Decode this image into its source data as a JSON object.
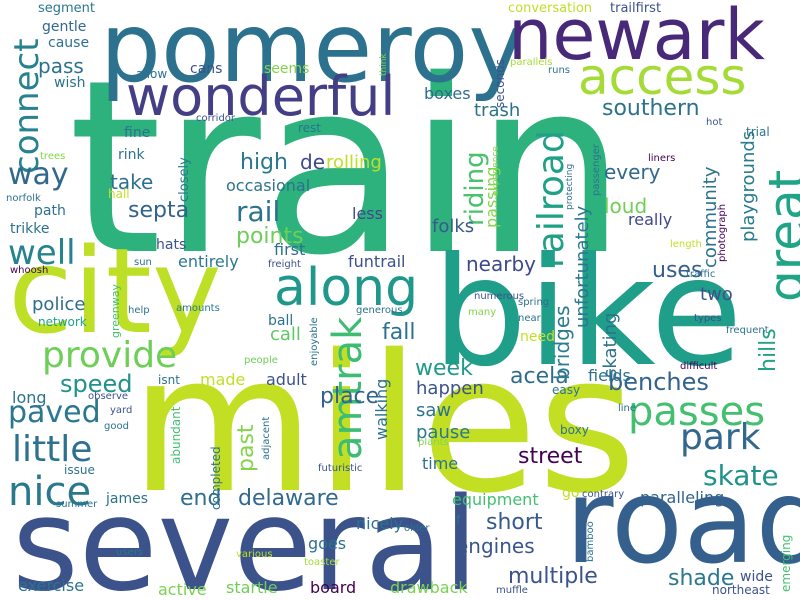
{
  "words": [
    {
      "text": "train",
      "color": "#2db27d"
    },
    {
      "text": "miles",
      "color": "#c2df23"
    },
    {
      "text": "several",
      "color": "#3b528b"
    },
    {
      "text": "bike",
      "color": "#1f9e89"
    },
    {
      "text": "city",
      "color": "#bddf26"
    },
    {
      "text": "road",
      "color": "#355f8d"
    },
    {
      "text": "pomeroy",
      "color": "#2c728e"
    },
    {
      "text": "newark",
      "color": "#482878"
    },
    {
      "text": "access",
      "color": "#a5db36"
    },
    {
      "text": "wonderful",
      "color": "#433e85"
    },
    {
      "text": "along",
      "color": "#1f988b"
    },
    {
      "text": "great",
      "color": "#20a486"
    },
    {
      "text": "provide",
      "color": "#6ece58"
    },
    {
      "text": "amtrak",
      "color": "#3dbc74"
    },
    {
      "text": "passes",
      "color": "#44bf70"
    },
    {
      "text": "connect",
      "color": "#26828e"
    },
    {
      "text": "railroad",
      "color": "#1fa187"
    },
    {
      "text": "park",
      "color": "#31688e"
    },
    {
      "text": "nice",
      "color": "#2a788e"
    },
    {
      "text": "little",
      "color": "#2c728e"
    },
    {
      "text": "well",
      "color": "#25838e"
    },
    {
      "text": "way",
      "color": "#31688e"
    },
    {
      "text": "paved",
      "color": "#2a788e"
    },
    {
      "text": "benches",
      "color": "#33638d"
    },
    {
      "text": "skate",
      "color": "#20928c"
    },
    {
      "text": "rail",
      "color": "#2c728e"
    },
    {
      "text": "southern",
      "color": "#2c728e"
    },
    {
      "text": "riding",
      "color": "#4ac16d"
    },
    {
      "text": "delaware",
      "color": "#31688e"
    },
    {
      "text": "street",
      "color": "#440154"
    },
    {
      "text": "multiple",
      "color": "#3b528b"
    },
    {
      "text": "engines",
      "color": "#39568c"
    },
    {
      "text": "short",
      "color": "#38598c"
    },
    {
      "text": "shade",
      "color": "#2a788e"
    },
    {
      "text": "fall",
      "color": "#2c728e"
    },
    {
      "text": "acela",
      "color": "#2f6c8e"
    },
    {
      "text": "speed",
      "color": "#21918c"
    },
    {
      "text": "high",
      "color": "#2a788e"
    },
    {
      "text": "take",
      "color": "#2d708e"
    },
    {
      "text": "septa",
      "color": "#33638d"
    },
    {
      "text": "points",
      "color": "#6ece58"
    },
    {
      "text": "nearby",
      "color": "#3e4989"
    },
    {
      "text": "place",
      "color": "#34618d"
    },
    {
      "text": "week",
      "color": "#1f9a8a"
    },
    {
      "text": "end",
      "color": "#2e6e8e"
    },
    {
      "text": "past",
      "color": "#84d44b"
    },
    {
      "text": "police",
      "color": "#2f6c8e"
    },
    {
      "text": "bridges",
      "color": "#287d8e"
    },
    {
      "text": "unfortunately",
      "color": "#29798e"
    },
    {
      "text": "skating",
      "color": "#2c728e"
    },
    {
      "text": "uses",
      "color": "#355e8d"
    },
    {
      "text": "two",
      "color": "#3b528b"
    },
    {
      "text": "every",
      "color": "#31688e"
    },
    {
      "text": "loud",
      "color": "#6ece58"
    },
    {
      "text": "really",
      "color": "#3f4788"
    },
    {
      "text": "community",
      "color": "#2c728e"
    },
    {
      "text": "playgrounds",
      "color": "#287c8e"
    },
    {
      "text": "hills",
      "color": "#20a386"
    },
    {
      "text": "funtrail",
      "color": "#3b528b"
    },
    {
      "text": "first",
      "color": "#2e6e8e"
    },
    {
      "text": "folks",
      "color": "#38598c"
    },
    {
      "text": "passing",
      "color": "#84d44b"
    },
    {
      "text": "trash",
      "color": "#2c728e"
    },
    {
      "text": "boxes",
      "color": "#2f6c8e"
    },
    {
      "text": "de",
      "color": "#3e4989"
    },
    {
      "text": "rolling",
      "color": "#bddf26"
    },
    {
      "text": "less",
      "color": "#3e4989"
    },
    {
      "text": "occasional",
      "color": "#2c728e"
    },
    {
      "text": "entirely",
      "color": "#2a788e"
    },
    {
      "text": "call",
      "color": "#5ec962"
    },
    {
      "text": "ball",
      "color": "#2c728e"
    },
    {
      "text": "adult",
      "color": "#3b528b"
    },
    {
      "text": "made",
      "color": "#c2df23"
    },
    {
      "text": "walking",
      "color": "#2c728e"
    },
    {
      "text": "happen",
      "color": "#3b528b"
    },
    {
      "text": "saw",
      "color": "#2c728e"
    },
    {
      "text": "pause",
      "color": "#2a788e"
    },
    {
      "text": "time",
      "color": "#2c728e"
    },
    {
      "text": "fields",
      "color": "#2c728e"
    },
    {
      "text": "equipment",
      "color": "#44bf70"
    },
    {
      "text": "paralleling",
      "color": "#33638d"
    },
    {
      "text": "nicely",
      "color": "#2c728e"
    },
    {
      "text": "goes",
      "color": "#2c728e"
    },
    {
      "text": "board",
      "color": "#440154"
    },
    {
      "text": "drawback",
      "color": "#7ad151"
    },
    {
      "text": "startle",
      "color": "#6ece58"
    },
    {
      "text": "active",
      "color": "#7ad151"
    },
    {
      "text": "exercise",
      "color": "#2c728e"
    },
    {
      "text": "james",
      "color": "#2c728e"
    },
    {
      "text": "long",
      "color": "#2c728e"
    },
    {
      "text": "pass",
      "color": "#2c728e"
    },
    {
      "text": "cause",
      "color": "#2c728e"
    },
    {
      "text": "gentle",
      "color": "#31688e"
    },
    {
      "text": "segment",
      "color": "#2a788e"
    },
    {
      "text": "wish",
      "color": "#2c728e"
    },
    {
      "text": "cans",
      "color": "#3b528b"
    },
    {
      "text": "seems",
      "color": "#84d44b"
    },
    {
      "text": "allow",
      "color": "#2c728e"
    },
    {
      "text": "fine",
      "color": "#2c728e"
    },
    {
      "text": "rink",
      "color": "#2c728e"
    },
    {
      "text": "closely",
      "color": "#2a788e"
    },
    {
      "text": "hall",
      "color": "#c2df23"
    },
    {
      "text": "hats",
      "color": "#3b528b"
    },
    {
      "text": "path",
      "color": "#2c728e"
    },
    {
      "text": "trikke",
      "color": "#2c728e"
    },
    {
      "text": "norfolk",
      "color": "#2c728e"
    },
    {
      "text": "trees",
      "color": "#84d44b"
    },
    {
      "text": "whoosh",
      "color": "#440154"
    },
    {
      "text": "network",
      "color": "#20a386"
    },
    {
      "text": "greenway",
      "color": "#44bf70"
    },
    {
      "text": "sun",
      "color": "#2c728e"
    },
    {
      "text": "help",
      "color": "#2c728e"
    },
    {
      "text": "amounts",
      "color": "#2a788e"
    },
    {
      "text": "people",
      "color": "#6ece58"
    },
    {
      "text": "isnt",
      "color": "#2c728e"
    },
    {
      "text": "observe",
      "color": "#3b528b"
    },
    {
      "text": "yard",
      "color": "#3b528b"
    },
    {
      "text": "good",
      "color": "#2c728e"
    },
    {
      "text": "issue",
      "color": "#2c728e"
    },
    {
      "text": "summer",
      "color": "#2c728e"
    },
    {
      "text": "abundant",
      "color": "#44bf70"
    },
    {
      "text": "completed",
      "color": "#2c728e"
    },
    {
      "text": "adjacent",
      "color": "#2c728e"
    },
    {
      "text": "futuristic",
      "color": "#3b528b"
    },
    {
      "text": "plants",
      "color": "#84d44b"
    },
    {
      "text": "various",
      "color": "#bddf26"
    },
    {
      "text": "toaster",
      "color": "#a5db36"
    },
    {
      "text": "older",
      "color": "#2c728e"
    },
    {
      "text": "users",
      "color": "#2a788e"
    },
    {
      "text": "enjoyable",
      "color": "#2c728e"
    },
    {
      "text": "generous",
      "color": "#2c728e"
    },
    {
      "text": "need",
      "color": "#c2df23"
    },
    {
      "text": "near",
      "color": "#2c728e"
    },
    {
      "text": "spring",
      "color": "#2c728e"
    },
    {
      "text": "many",
      "color": "#84d44b"
    },
    {
      "text": "numerous",
      "color": "#3b528b"
    },
    {
      "text": "easy",
      "color": "#2c728e"
    },
    {
      "text": "boxy",
      "color": "#2c728e"
    },
    {
      "text": "line",
      "color": "#2c728e"
    },
    {
      "text": "go",
      "color": "#c2df23"
    },
    {
      "text": "f",
      "color": "#2c728e"
    },
    {
      "text": "contrary",
      "color": "#3b528b"
    },
    {
      "text": "bamboo",
      "color": "#2c728e"
    },
    {
      "text": "muffle",
      "color": "#3b528b"
    },
    {
      "text": "wide",
      "color": "#3b528b"
    },
    {
      "text": "northeast",
      "color": "#3b528b"
    },
    {
      "text": "emerging",
      "color": "#44bf70"
    },
    {
      "text": "difficult",
      "color": "#440154"
    },
    {
      "text": "frequent",
      "color": "#2c728e"
    },
    {
      "text": "types",
      "color": "#3b528b"
    },
    {
      "text": "traffic",
      "color": "#2c728e"
    },
    {
      "text": "length",
      "color": "#c2df23"
    },
    {
      "text": "photograph",
      "color": "#440154"
    },
    {
      "text": "freight",
      "color": "#3b528b"
    },
    {
      "text": "liners",
      "color": "#440154"
    },
    {
      "text": "hot",
      "color": "#3b528b"
    },
    {
      "text": "trial",
      "color": "#2c728e"
    },
    {
      "text": "passenger",
      "color": "#2c728e"
    },
    {
      "text": "protecting",
      "color": "#2c728e"
    },
    {
      "text": "experience",
      "color": "#84d44b"
    },
    {
      "text": "corridor",
      "color": "#3b528b"
    },
    {
      "text": "runs",
      "color": "#2c728e"
    },
    {
      "text": "parallels",
      "color": "#a5db36"
    },
    {
      "text": "seconds",
      "color": "#3b528b"
    },
    {
      "text": "think",
      "color": "#84d44b"
    },
    {
      "text": "conversation",
      "color": "#bddf26"
    },
    {
      "text": "trailfirst",
      "color": "#3b528b"
    },
    {
      "text": "rest",
      "color": "#2c728e"
    }
  ]
}
